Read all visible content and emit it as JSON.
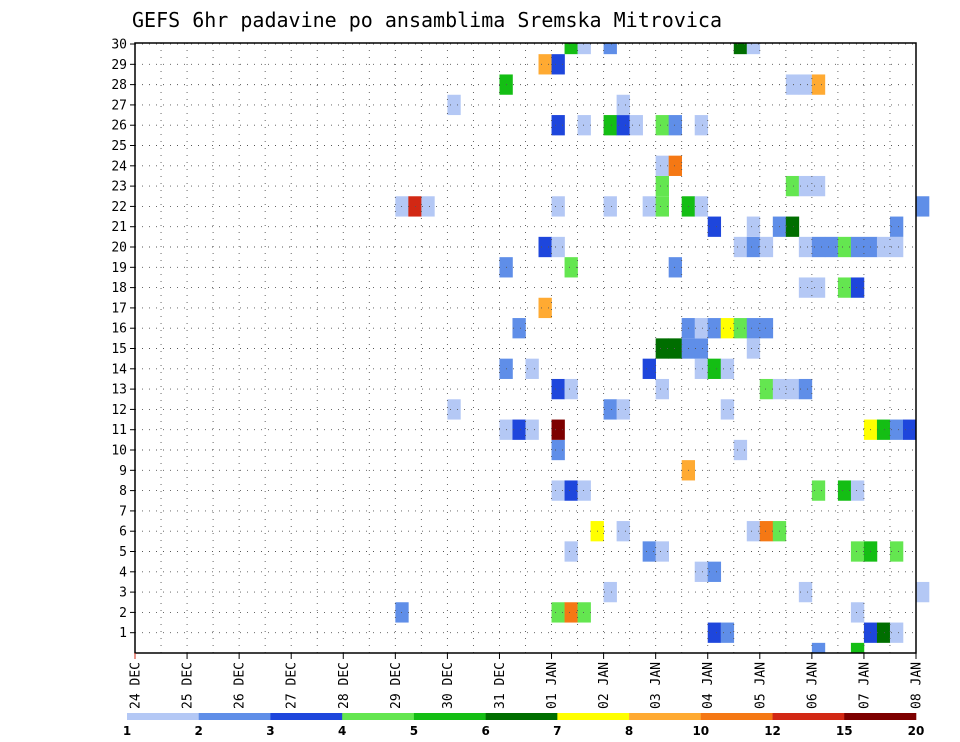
{
  "chart_data": {
    "type": "heatmap",
    "title": "GEFS 6hr padavine po ansamblima Sremska Mitrovica",
    "xlabel": "",
    "ylabel": "",
    "x_ticks": [
      "24 DEC",
      "25 DEC",
      "26 DEC",
      "27 DEC",
      "28 DEC",
      "29 DEC",
      "30 DEC",
      "31 DEC",
      "01 JAN",
      "02 JAN",
      "03 JAN",
      "04 JAN",
      "05 JAN",
      "06 JAN",
      "07 JAN",
      "08 JAN"
    ],
    "y_ticks": [
      "1",
      "2",
      "3",
      "4",
      "5",
      "6",
      "7",
      "8",
      "9",
      "10",
      "11",
      "12",
      "13",
      "14",
      "15",
      "16",
      "17",
      "18",
      "19",
      "20",
      "21",
      "22",
      "23",
      "24",
      "25",
      "26",
      "27",
      "28",
      "29",
      "30"
    ],
    "grid": true,
    "steps_per_day": 4,
    "colorbar": {
      "labels": [
        "1",
        "2",
        "3",
        "4",
        "5",
        "6",
        "7",
        "8",
        "10",
        "12",
        "15",
        "20"
      ],
      "colors": [
        "#b4c8f5",
        "#5f8ee8",
        "#1e46dc",
        "#64e650",
        "#14be14",
        "#006e00",
        "#ffff00",
        "#ffaa32",
        "#f57814",
        "#d22814",
        "#7d0000"
      ]
    },
    "cells": [
      {
        "m": 1,
        "d": "04 JAN",
        "s": 0,
        "c": 2
      },
      {
        "m": 1,
        "d": "04 JAN",
        "s": 1,
        "c": 1
      },
      {
        "m": 1,
        "d": "07 JAN",
        "s": 0,
        "c": 2
      },
      {
        "m": 1,
        "d": "07 JAN",
        "s": 1,
        "c": 5
      },
      {
        "m": 1,
        "d": "07 JAN",
        "s": 2,
        "c": 0
      },
      {
        "m": 2,
        "d": "29 DEC",
        "s": 0,
        "c": 1
      },
      {
        "m": 2,
        "d": "01 JAN",
        "s": 0,
        "c": 3
      },
      {
        "m": 2,
        "d": "01 JAN",
        "s": 1,
        "c": 8
      },
      {
        "m": 2,
        "d": "01 JAN",
        "s": 2,
        "c": 3
      },
      {
        "m": 2,
        "d": "06 JAN",
        "s": 3,
        "c": 0
      },
      {
        "m": 3,
        "d": "02 JAN",
        "s": 0,
        "c": 0
      },
      {
        "m": 3,
        "d": "05 JAN",
        "s": 3,
        "c": 0
      },
      {
        "m": 3,
        "d": "08 JAN",
        "s": 0,
        "c": 0
      },
      {
        "m": 4,
        "d": "03 JAN",
        "s": 3,
        "c": 0
      },
      {
        "m": 4,
        "d": "04 JAN",
        "s": 0,
        "c": 1
      },
      {
        "m": 5,
        "d": "01 JAN",
        "s": 1,
        "c": 0
      },
      {
        "m": 5,
        "d": "02 JAN",
        "s": 3,
        "c": 1
      },
      {
        "m": 5,
        "d": "03 JAN",
        "s": 0,
        "c": 0
      },
      {
        "m": 5,
        "d": "06 JAN",
        "s": 3,
        "c": 3
      },
      {
        "m": 5,
        "d": "07 JAN",
        "s": 0,
        "c": 4
      },
      {
        "m": 5,
        "d": "07 JAN",
        "s": 2,
        "c": 3
      },
      {
        "m": 6,
        "d": "01 JAN",
        "s": 3,
        "c": 6
      },
      {
        "m": 6,
        "d": "02 JAN",
        "s": 1,
        "c": 0
      },
      {
        "m": 6,
        "d": "04 JAN",
        "s": 3,
        "c": 0
      },
      {
        "m": 6,
        "d": "05 JAN",
        "s": 0,
        "c": 8
      },
      {
        "m": 6,
        "d": "05 JAN",
        "s": 1,
        "c": 3
      },
      {
        "m": 8,
        "d": "01 JAN",
        "s": 0,
        "c": 0
      },
      {
        "m": 8,
        "d": "01 JAN",
        "s": 1,
        "c": 2
      },
      {
        "m": 8,
        "d": "01 JAN",
        "s": 2,
        "c": 0
      },
      {
        "m": 8,
        "d": "06 JAN",
        "s": 0,
        "c": 3
      },
      {
        "m": 8,
        "d": "06 JAN",
        "s": 2,
        "c": 4
      },
      {
        "m": 8,
        "d": "06 JAN",
        "s": 3,
        "c": 0
      },
      {
        "m": 9,
        "d": "03 JAN",
        "s": 2,
        "c": 7
      },
      {
        "m": 10,
        "d": "01 JAN",
        "s": 0,
        "c": 1
      },
      {
        "m": 10,
        "d": "04 JAN",
        "s": 2,
        "c": 0
      },
      {
        "m": 11,
        "d": "31 DEC",
        "s": 0,
        "c": 0
      },
      {
        "m": 11,
        "d": "31 DEC",
        "s": 1,
        "c": 2
      },
      {
        "m": 11,
        "d": "31 DEC",
        "s": 2,
        "c": 0
      },
      {
        "m": 11,
        "d": "01 JAN",
        "s": 0,
        "c": 10
      },
      {
        "m": 11,
        "d": "07 JAN",
        "s": 0,
        "c": 6
      },
      {
        "m": 11,
        "d": "07 JAN",
        "s": 1,
        "c": 4
      },
      {
        "m": 11,
        "d": "07 JAN",
        "s": 2,
        "c": 1
      },
      {
        "m": 11,
        "d": "07 JAN",
        "s": 3,
        "c": 2
      },
      {
        "m": 12,
        "d": "30 DEC",
        "s": 0,
        "c": 0
      },
      {
        "m": 12,
        "d": "02 JAN",
        "s": 0,
        "c": 1
      },
      {
        "m": 12,
        "d": "02 JAN",
        "s": 1,
        "c": 0
      },
      {
        "m": 12,
        "d": "04 JAN",
        "s": 1,
        "c": 0
      },
      {
        "m": 13,
        "d": "01 JAN",
        "s": 0,
        "c": 2
      },
      {
        "m": 13,
        "d": "01 JAN",
        "s": 1,
        "c": 0
      },
      {
        "m": 13,
        "d": "03 JAN",
        "s": 0,
        "c": 0
      },
      {
        "m": 13,
        "d": "05 JAN",
        "s": 0,
        "c": 3
      },
      {
        "m": 13,
        "d": "05 JAN",
        "s": 1,
        "c": 0
      },
      {
        "m": 13,
        "d": "05 JAN",
        "s": 2,
        "c": 0
      },
      {
        "m": 13,
        "d": "05 JAN",
        "s": 3,
        "c": 1
      },
      {
        "m": 14,
        "d": "31 DEC",
        "s": 0,
        "c": 1
      },
      {
        "m": 14,
        "d": "31 DEC",
        "s": 2,
        "c": 0
      },
      {
        "m": 14,
        "d": "02 JAN",
        "s": 3,
        "c": 2
      },
      {
        "m": 14,
        "d": "03 JAN",
        "s": 3,
        "c": 0
      },
      {
        "m": 14,
        "d": "04 JAN",
        "s": 0,
        "c": 4
      },
      {
        "m": 14,
        "d": "04 JAN",
        "s": 1,
        "c": 0
      },
      {
        "m": 15,
        "d": "03 JAN",
        "s": 0,
        "c": 5
      },
      {
        "m": 15,
        "d": "03 JAN",
        "s": 1,
        "c": 5
      },
      {
        "m": 15,
        "d": "03 JAN",
        "s": 2,
        "c": 1
      },
      {
        "m": 15,
        "d": "03 JAN",
        "s": 3,
        "c": 1
      },
      {
        "m": 15,
        "d": "04 JAN",
        "s": 3,
        "c": 0
      },
      {
        "m": 16,
        "d": "31 DEC",
        "s": 1,
        "c": 1
      },
      {
        "m": 16,
        "d": "03 JAN",
        "s": 2,
        "c": 1
      },
      {
        "m": 16,
        "d": "03 JAN",
        "s": 3,
        "c": 0
      },
      {
        "m": 16,
        "d": "04 JAN",
        "s": 0,
        "c": 1
      },
      {
        "m": 16,
        "d": "04 JAN",
        "s": 1,
        "c": 6
      },
      {
        "m": 16,
        "d": "04 JAN",
        "s": 2,
        "c": 3
      },
      {
        "m": 16,
        "d": "04 JAN",
        "s": 3,
        "c": 1
      },
      {
        "m": 16,
        "d": "05 JAN",
        "s": 0,
        "c": 1
      },
      {
        "m": 17,
        "d": "31 DEC",
        "s": 3,
        "c": 7
      },
      {
        "m": 18,
        "d": "05 JAN",
        "s": 3,
        "c": 0
      },
      {
        "m": 18,
        "d": "06 JAN",
        "s": 0,
        "c": 0
      },
      {
        "m": 18,
        "d": "06 JAN",
        "s": 2,
        "c": 3
      },
      {
        "m": 18,
        "d": "06 JAN",
        "s": 3,
        "c": 2
      },
      {
        "m": 19,
        "d": "31 DEC",
        "s": 0,
        "c": 1
      },
      {
        "m": 19,
        "d": "01 JAN",
        "s": 1,
        "c": 3
      },
      {
        "m": 19,
        "d": "03 JAN",
        "s": 1,
        "c": 1
      },
      {
        "m": 20,
        "d": "31 DEC",
        "s": 3,
        "c": 2
      },
      {
        "m": 20,
        "d": "01 JAN",
        "s": 0,
        "c": 0
      },
      {
        "m": 20,
        "d": "04 JAN",
        "s": 2,
        "c": 0
      },
      {
        "m": 20,
        "d": "04 JAN",
        "s": 3,
        "c": 1
      },
      {
        "m": 20,
        "d": "05 JAN",
        "s": 0,
        "c": 0
      },
      {
        "m": 20,
        "d": "05 JAN",
        "s": 3,
        "c": 0
      },
      {
        "m": 20,
        "d": "06 JAN",
        "s": 0,
        "c": 1
      },
      {
        "m": 20,
        "d": "06 JAN",
        "s": 1,
        "c": 1
      },
      {
        "m": 20,
        "d": "06 JAN",
        "s": 2,
        "c": 3
      },
      {
        "m": 20,
        "d": "06 JAN",
        "s": 3,
        "c": 1
      },
      {
        "m": 20,
        "d": "07 JAN",
        "s": 0,
        "c": 1
      },
      {
        "m": 20,
        "d": "07 JAN",
        "s": 1,
        "c": 0
      },
      {
        "m": 20,
        "d": "07 JAN",
        "s": 2,
        "c": 0
      },
      {
        "m": 21,
        "d": "04 JAN",
        "s": 0,
        "c": 2
      },
      {
        "m": 21,
        "d": "04 JAN",
        "s": 3,
        "c": 0
      },
      {
        "m": 21,
        "d": "05 JAN",
        "s": 1,
        "c": 1
      },
      {
        "m": 21,
        "d": "05 JAN",
        "s": 2,
        "c": 5
      },
      {
        "m": 21,
        "d": "07 JAN",
        "s": 2,
        "c": 1
      },
      {
        "m": 22,
        "d": "29 DEC",
        "s": 0,
        "c": 0
      },
      {
        "m": 22,
        "d": "29 DEC",
        "s": 1,
        "c": 9
      },
      {
        "m": 22,
        "d": "29 DEC",
        "s": 2,
        "c": 0
      },
      {
        "m": 22,
        "d": "01 JAN",
        "s": 0,
        "c": 0
      },
      {
        "m": 22,
        "d": "02 JAN",
        "s": 0,
        "c": 0
      },
      {
        "m": 22,
        "d": "02 JAN",
        "s": 3,
        "c": 0
      },
      {
        "m": 22,
        "d": "03 JAN",
        "s": 0,
        "c": 3
      },
      {
        "m": 22,
        "d": "03 JAN",
        "s": 2,
        "c": 4
      },
      {
        "m": 22,
        "d": "03 JAN",
        "s": 3,
        "c": 0
      },
      {
        "m": 22,
        "d": "08 JAN",
        "s": 0,
        "c": 1
      },
      {
        "m": 23,
        "d": "03 JAN",
        "s": 0,
        "c": 3
      },
      {
        "m": 23,
        "d": "05 JAN",
        "s": 2,
        "c": 3
      },
      {
        "m": 23,
        "d": "05 JAN",
        "s": 3,
        "c": 0
      },
      {
        "m": 23,
        "d": "06 JAN",
        "s": 0,
        "c": 0
      },
      {
        "m": 24,
        "d": "03 JAN",
        "s": 0,
        "c": 0
      },
      {
        "m": 24,
        "d": "03 JAN",
        "s": 1,
        "c": 8
      },
      {
        "m": 26,
        "d": "01 JAN",
        "s": 0,
        "c": 2
      },
      {
        "m": 26,
        "d": "01 JAN",
        "s": 2,
        "c": 0
      },
      {
        "m": 26,
        "d": "02 JAN",
        "s": 0,
        "c": 4
      },
      {
        "m": 26,
        "d": "02 JAN",
        "s": 1,
        "c": 2
      },
      {
        "m": 26,
        "d": "02 JAN",
        "s": 2,
        "c": 0
      },
      {
        "m": 26,
        "d": "03 JAN",
        "s": 0,
        "c": 3
      },
      {
        "m": 26,
        "d": "03 JAN",
        "s": 1,
        "c": 1
      },
      {
        "m": 26,
        "d": "03 JAN",
        "s": 3,
        "c": 0
      },
      {
        "m": 27,
        "d": "30 DEC",
        "s": 0,
        "c": 0
      },
      {
        "m": 27,
        "d": "02 JAN",
        "s": 1,
        "c": 0
      },
      {
        "m": 28,
        "d": "31 DEC",
        "s": 0,
        "c": 4
      },
      {
        "m": 28,
        "d": "05 JAN",
        "s": 2,
        "c": 0
      },
      {
        "m": 28,
        "d": "05 JAN",
        "s": 3,
        "c": 0
      },
      {
        "m": 28,
        "d": "06 JAN",
        "s": 0,
        "c": 7
      },
      {
        "m": 29,
        "d": "31 DEC",
        "s": 3,
        "c": 7
      },
      {
        "m": 29,
        "d": "01 JAN",
        "s": 0,
        "c": 2
      },
      {
        "m": 30,
        "d": "01 JAN",
        "s": 1,
        "c": 4
      },
      {
        "m": 30,
        "d": "01 JAN",
        "s": 2,
        "c": 0
      },
      {
        "m": 30,
        "d": "02 JAN",
        "s": 0,
        "c": 1
      },
      {
        "m": 30,
        "d": "04 JAN",
        "s": 2,
        "c": 5
      },
      {
        "m": 30,
        "d": "04 JAN",
        "s": 3,
        "c": 0
      },
      {
        "m": 0,
        "d": "06 JAN",
        "s": 0,
        "c": 1
      },
      {
        "m": 0,
        "d": "06 JAN",
        "s": 3,
        "c": 4
      }
    ]
  }
}
